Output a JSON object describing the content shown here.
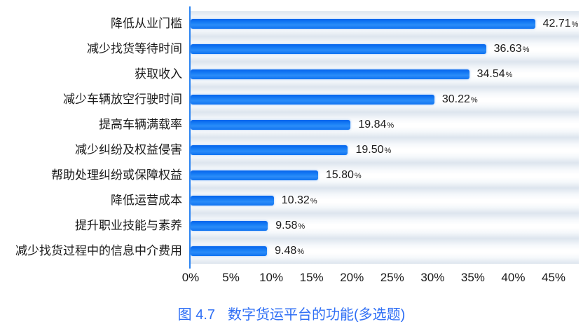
{
  "chart_data": {
    "type": "bar",
    "orientation": "horizontal",
    "figure_label": "图 4.7",
    "title": "数字货运平台的功能(多选题)",
    "categories": [
      "降低从业门槛",
      "减少找货等待时间",
      "获取收入",
      "减少车辆放空行驶时间",
      "提高车辆满载率",
      "减少纠纷及权益侵害",
      "帮助处理纠纷或保障权益",
      "降低运营成本",
      "提升职业技能与素养",
      "减少找货过程中的信息中介费用"
    ],
    "values": [
      42.71,
      36.63,
      34.54,
      30.22,
      19.84,
      19.5,
      15.8,
      10.32,
      9.58,
      9.48
    ],
    "value_labels": [
      "42.71",
      "36.63",
      "34.54",
      "30.22",
      "19.84",
      "19.50",
      "15.80",
      "10.32",
      "9.58",
      "9.48"
    ],
    "percent_suffix": "%",
    "x_ticks": [
      "0%",
      "5%",
      "10%",
      "15%",
      "20%",
      "25%",
      "30%",
      "35%",
      "40%",
      "45%"
    ],
    "xlim": [
      0,
      45
    ],
    "grid": false,
    "legend_position": "none",
    "colors": {
      "bar": "#0f79f3",
      "axis_line": "#2b84f2",
      "title": "#2f6ff5",
      "value_text": "#1a1a1a",
      "band": "#dde5ee"
    }
  }
}
